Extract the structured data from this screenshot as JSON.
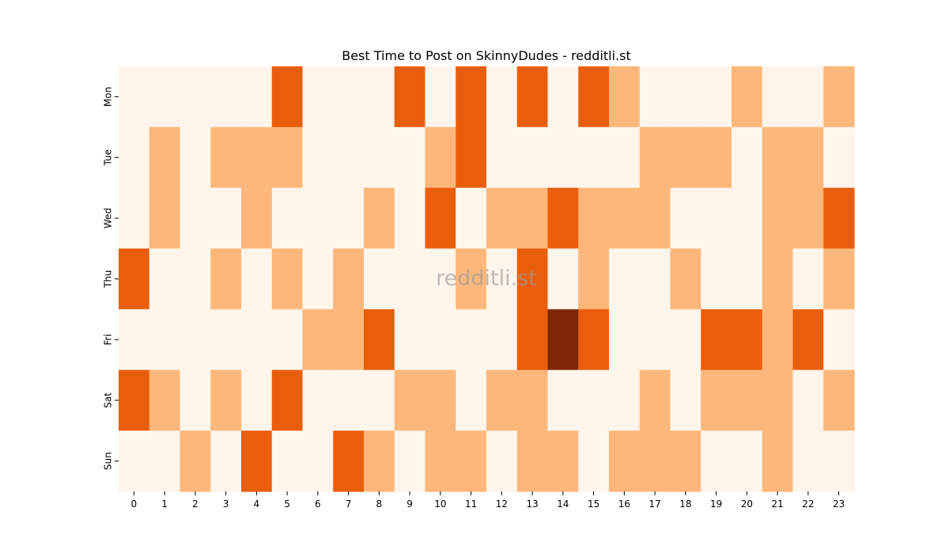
{
  "chart_data": {
    "type": "heatmap",
    "title": "Best Time to Post on SkinnyDudes - redditli.st",
    "watermark": "redditli.st",
    "xlabel": "",
    "ylabel": "",
    "x_labels": [
      "0",
      "1",
      "2",
      "3",
      "4",
      "5",
      "6",
      "7",
      "8",
      "9",
      "10",
      "11",
      "12",
      "13",
      "14",
      "15",
      "16",
      "17",
      "18",
      "19",
      "20",
      "21",
      "22",
      "23"
    ],
    "y_labels": [
      "Mon",
      "Tue",
      "Wed",
      "Thu",
      "Fri",
      "Sat",
      "Sun"
    ],
    "value_range": [
      0,
      3
    ],
    "values": [
      [
        0,
        0,
        0,
        0,
        0,
        2,
        0,
        0,
        0,
        2,
        0,
        2,
        0,
        2,
        0,
        2,
        1,
        0,
        0,
        0,
        1,
        0,
        0,
        1
      ],
      [
        0,
        1,
        0,
        1,
        1,
        1,
        0,
        0,
        0,
        0,
        1,
        2,
        0,
        0,
        0,
        0,
        0,
        1,
        1,
        1,
        0,
        1,
        1,
        0
      ],
      [
        0,
        1,
        0,
        0,
        1,
        0,
        0,
        0,
        1,
        0,
        2,
        0,
        1,
        1,
        2,
        1,
        1,
        1,
        0,
        0,
        0,
        1,
        1,
        2
      ],
      [
        2,
        0,
        0,
        1,
        0,
        1,
        0,
        1,
        0,
        0,
        0,
        1,
        0,
        2,
        0,
        1,
        0,
        0,
        1,
        0,
        0,
        1,
        0,
        1
      ],
      [
        0,
        0,
        0,
        0,
        0,
        0,
        1,
        1,
        2,
        0,
        0,
        0,
        0,
        2,
        3,
        2,
        0,
        0,
        0,
        2,
        2,
        1,
        2,
        0
      ],
      [
        2,
        1,
        0,
        1,
        0,
        2,
        0,
        0,
        0,
        1,
        1,
        0,
        1,
        1,
        0,
        0,
        0,
        1,
        0,
        1,
        1,
        1,
        0,
        1
      ],
      [
        0,
        0,
        1,
        0,
        2,
        0,
        0,
        2,
        1,
        0,
        1,
        1,
        0,
        1,
        1,
        0,
        1,
        1,
        1,
        0,
        0,
        1,
        0,
        0
      ]
    ],
    "colormap": [
      "#fff5eb",
      "#fdb77a",
      "#e95e0d",
      "#7f2704"
    ],
    "grid": false,
    "legend": "none"
  }
}
